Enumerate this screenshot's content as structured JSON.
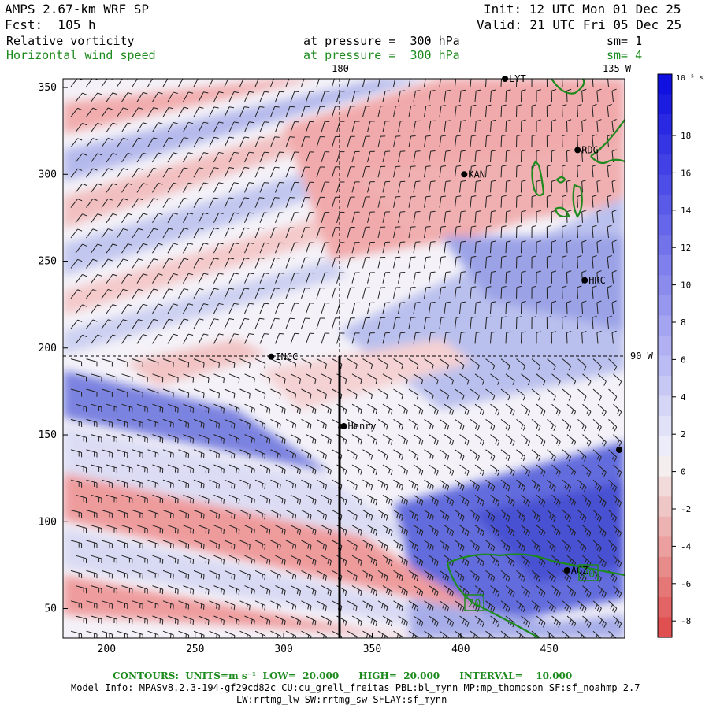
{
  "header": {
    "model": "AMPS 2.67-km WRF SP",
    "forecast": "Fcst:  105 h",
    "init": "Init: 12 UTC Mon 01 Dec 25",
    "valid": "Valid: 21 UTC Fri 05 Dec 25",
    "field1": "Relative vorticity",
    "field1_level": "at pressure =  300 hPa",
    "field1_sm": "sm= 1",
    "field2": "Horizontal wind speed",
    "field2_level": "at pressure =  300 hPa",
    "field2_sm": "sm= 4"
  },
  "map": {
    "lon_label_180": "180",
    "lon_label_135w": "135 W",
    "lat_label_90w": "90 W",
    "x_ticks": [
      "200",
      "250",
      "300",
      "350",
      "400",
      "450"
    ],
    "y_ticks": [
      "350",
      "300",
      "250",
      "200",
      "150",
      "100",
      "50"
    ],
    "stations": [
      {
        "name": "LYT",
        "x": 425,
        "y": 355
      },
      {
        "name": "RDG",
        "x": 466,
        "y": 314
      },
      {
        "name": "KAN",
        "x": 402,
        "y": 300
      },
      {
        "name": "HRC",
        "x": 470,
        "y": 239
      },
      {
        "name": "INCC",
        "x": 293,
        "y": 195
      },
      {
        "name": "Henry",
        "x": 334,
        "y": 155
      },
      {
        "name": "AGZ",
        "x": 460,
        "y": 72
      }
    ],
    "contour_labels": [
      "20",
      "20"
    ],
    "colors": {
      "positive": "#1010e0",
      "negative": "#e05050",
      "contour": "#1d8a1d"
    }
  },
  "colorbar": {
    "unit": "10⁻⁵ s⁻¹",
    "ticks": [
      "18",
      "16",
      "14",
      "12",
      "10",
      "8",
      "6",
      "4",
      "2",
      "0",
      "-2",
      "-4",
      "-6",
      "-8"
    ]
  },
  "footer": {
    "contours": "CONTOURS:  UNITS=m s⁻¹  LOW=  20.000      HIGH=  20.000      INTERVAL=    10.000",
    "model_info": "Model Info: MPASv8.2.3-194-gf29cd82c CU:cu_grell_freitas PBL:bl_mynn MP:mp_thompson SF:sf_noahmp 2.7",
    "model_info2": "LW:rrtmg_lw SW:rrtmg_sw SFLAY:sf_mynn"
  }
}
